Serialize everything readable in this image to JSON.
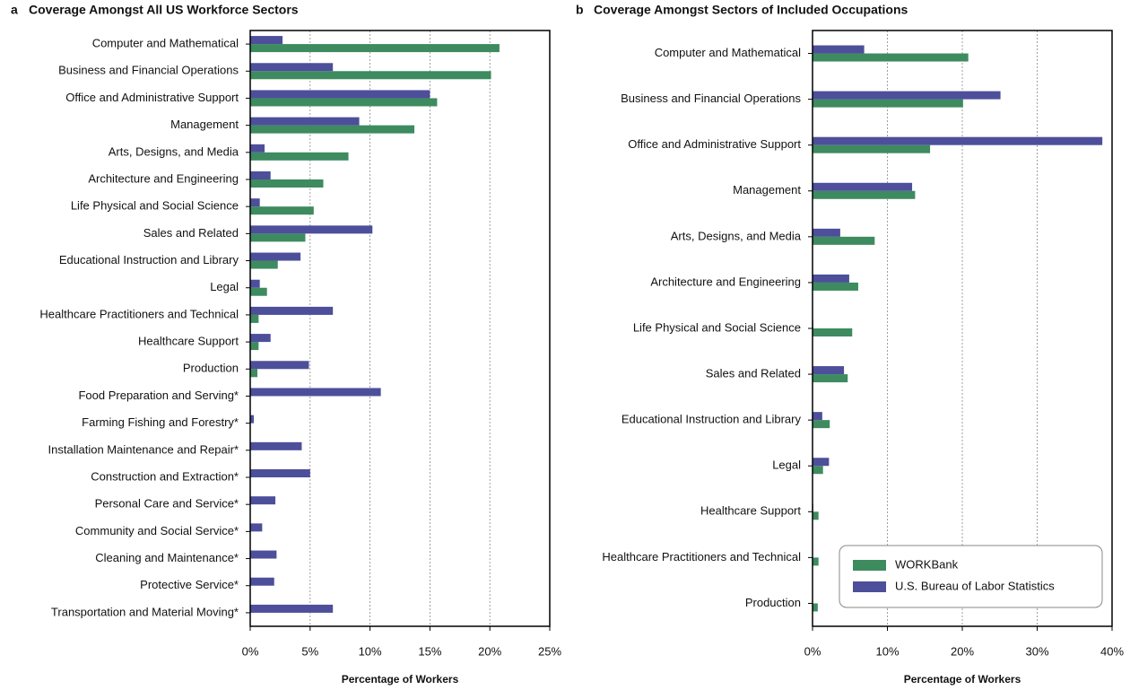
{
  "chart_data": [
    {
      "type": "barh",
      "panel": "a",
      "title": "Coverage Amongst All US Workforce Sectors",
      "xlabel": "Percentage of Workers",
      "categories": [
        "Computer and Mathematical",
        "Business and Financial Operations",
        "Office and Administrative Support",
        "Management",
        "Arts, Designs, and Media",
        "Architecture and Engineering",
        "Life Physical and Social Science",
        "Sales and Related",
        "Educational Instruction and Library",
        "Legal",
        "Healthcare Practitioners and Technical",
        "Healthcare Support",
        "Production",
        "Food Preparation and Serving*",
        "Farming Fishing and Forestry*",
        "Installation Maintenance and Repair*",
        "Construction and Extraction*",
        "Personal Care and Service*",
        "Community and Social Service*",
        "Cleaning and Maintenance*",
        "Protective Service*",
        "Transportation and Material Moving*"
      ],
      "series": [
        {
          "color": "#3d8b5f",
          "values": [
            20.8,
            20.1,
            15.6,
            13.7,
            8.2,
            6.1,
            5.3,
            4.6,
            2.3,
            1.4,
            0.7,
            0.7,
            0.6,
            0,
            0,
            0,
            0,
            0,
            0,
            0,
            0,
            0
          ]
        },
        {
          "color": "#4d4f9b",
          "values": [
            2.7,
            6.9,
            15.0,
            9.1,
            1.2,
            1.7,
            0.8,
            10.2,
            4.2,
            0.8,
            6.9,
            1.7,
            4.9,
            10.9,
            0.3,
            4.3,
            5.0,
            2.1,
            1.0,
            2.2,
            2.0,
            6.9
          ]
        }
      ],
      "xlim": [
        0,
        25
      ],
      "xticks": [
        {
          "value": 0,
          "label": "0%"
        },
        {
          "value": 5,
          "label": "5%"
        },
        {
          "value": 10,
          "label": "10%"
        },
        {
          "value": 15,
          "label": "15%"
        },
        {
          "value": 20,
          "label": "20%"
        },
        {
          "value": 25,
          "label": "25%"
        }
      ],
      "grid": true,
      "legend": false
    },
    {
      "type": "barh",
      "panel": "b",
      "title": "Coverage Amongst Sectors of Included Occupations",
      "xlabel": "Percentage of Workers",
      "categories": [
        "Computer and Mathematical",
        "Business and Financial Operations",
        "Office and Administrative Support",
        "Management",
        "Arts, Designs, and Media",
        "Architecture and Engineering",
        "Life Physical and Social Science",
        "Sales and Related",
        "Educational Instruction and Library",
        "Legal",
        "Healthcare Support",
        "Healthcare Practitioners and Technical",
        "Production"
      ],
      "series": [
        {
          "name": "WORKBank",
          "color": "#3d8b5f",
          "values": [
            20.8,
            20.1,
            15.7,
            13.7,
            8.3,
            6.1,
            5.3,
            4.7,
            2.3,
            1.4,
            0.8,
            0.8,
            0.7
          ]
        },
        {
          "name": "U.S. Bureau of Labor Statistics",
          "color": "#4d4f9b",
          "values": [
            6.9,
            25.1,
            38.7,
            13.3,
            3.7,
            4.9,
            0.1,
            4.2,
            1.3,
            2.2,
            0.1,
            0,
            0
          ]
        }
      ],
      "xlim": [
        0,
        40
      ],
      "xticks": [
        {
          "value": 0,
          "label": "0%"
        },
        {
          "value": 10,
          "label": "10%"
        },
        {
          "value": 20,
          "label": "20%"
        },
        {
          "value": 30,
          "label": "30%"
        },
        {
          "value": 40,
          "label": "40%"
        }
      ],
      "grid": true,
      "legend": "lower right"
    }
  ]
}
